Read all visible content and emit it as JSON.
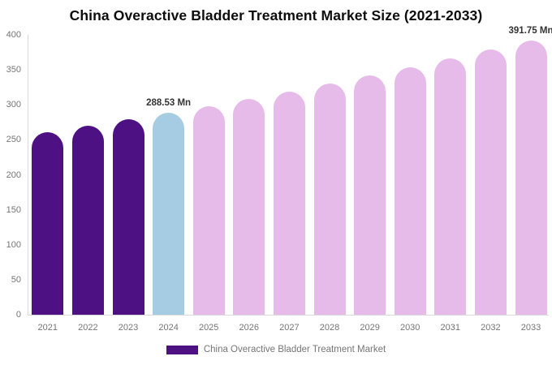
{
  "chart_data": {
    "type": "bar",
    "title": "China Overactive Bladder Treatment Market Size (2021-2033)",
    "unit": "Mn",
    "categories": [
      "2021",
      "2022",
      "2023",
      "2024",
      "2025",
      "2026",
      "2027",
      "2028",
      "2029",
      "2030",
      "2031",
      "2032",
      "2033"
    ],
    "values": [
      260.6,
      269.6,
      278.9,
      288.53,
      298.5,
      308.8,
      319.4,
      330.5,
      341.9,
      353.7,
      365.9,
      378.6,
      391.75
    ],
    "bar_colors": [
      "#4E1183",
      "#4E1183",
      "#4E1183",
      "#A5CCE3",
      "#E6BBEA",
      "#E6BBEA",
      "#E6BBEA",
      "#E6BBEA",
      "#E6BBEA",
      "#E6BBEA",
      "#E6BBEA",
      "#E6BBEA",
      "#E6BBEA"
    ],
    "yticks": [
      0,
      50,
      100,
      150,
      200,
      250,
      300,
      350,
      400
    ],
    "ylim": [
      0,
      400
    ],
    "grid": "off",
    "annotations": [
      {
        "category": "2024",
        "text": "288.53 Mn"
      },
      {
        "category": "2033",
        "text": "391.75 Mn"
      }
    ],
    "legend": {
      "position": "bottom-center",
      "label": "China Overactive Bladder Treatment Market",
      "swatch_color": "#4E1183"
    },
    "axis_color": "#d9d9d9",
    "tick_label_color": "#757575",
    "annotation_color": "#333333",
    "title_color": "#0d0d0d",
    "background_color": "#ffffff"
  }
}
